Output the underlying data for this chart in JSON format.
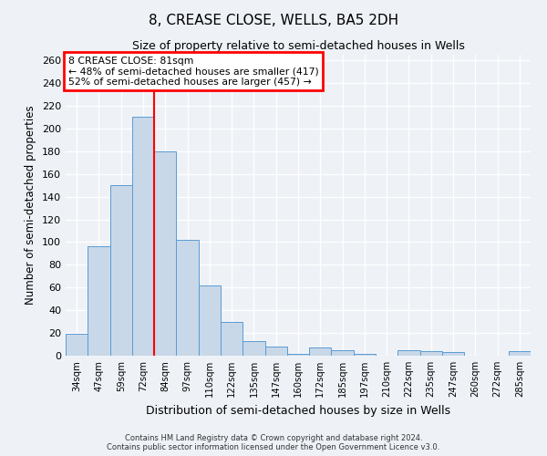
{
  "title": "8, CREASE CLOSE, WELLS, BA5 2DH",
  "subtitle": "Size of property relative to semi-detached houses in Wells",
  "xlabel": "Distribution of semi-detached houses by size in Wells",
  "ylabel": "Number of semi-detached properties",
  "bar_labels": [
    "34sqm",
    "47sqm",
    "59sqm",
    "72sqm",
    "84sqm",
    "97sqm",
    "110sqm",
    "122sqm",
    "135sqm",
    "147sqm",
    "160sqm",
    "172sqm",
    "185sqm",
    "197sqm",
    "210sqm",
    "222sqm",
    "235sqm",
    "247sqm",
    "260sqm",
    "272sqm",
    "285sqm"
  ],
  "bar_values": [
    19,
    96,
    150,
    210,
    180,
    102,
    62,
    30,
    13,
    8,
    2,
    7,
    5,
    2,
    0,
    5,
    4,
    3,
    0,
    0,
    4
  ],
  "bar_color": "#c8d8e8",
  "bar_edge_color": "#5b9bd5",
  "vline_color": "red",
  "vline_pos": 3.5,
  "annotation_title": "8 CREASE CLOSE: 81sqm",
  "annotation_line1": "← 48% of semi-detached houses are smaller (417)",
  "annotation_line2": "52% of semi-detached houses are larger (457) →",
  "annotation_box_edgecolor": "red",
  "ylim": [
    0,
    265
  ],
  "yticks": [
    0,
    20,
    40,
    60,
    80,
    100,
    120,
    140,
    160,
    180,
    200,
    220,
    240,
    260
  ],
  "footer_line1": "Contains HM Land Registry data © Crown copyright and database right 2024.",
  "footer_line2": "Contains public sector information licensed under the Open Government Licence v3.0.",
  "background_color": "#eef2f7",
  "plot_bg_color": "#eef2f7",
  "figsize": [
    6.0,
    5.0
  ],
  "dpi": 100
}
